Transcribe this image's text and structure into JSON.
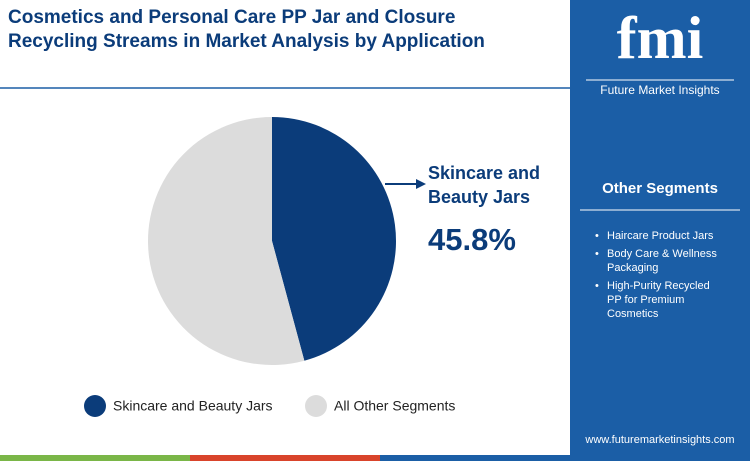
{
  "chart_data": {
    "type": "pie",
    "title": "Cosmetics and Personal Care PP Jar and Closure Recycling Streams in Market Analysis by Application",
    "categories": [
      "Skincare and Beauty Jars",
      "All Other Segments"
    ],
    "values": [
      45.8,
      54.2
    ],
    "value_labels": [
      "45.8%",
      null
    ],
    "colors": [
      "#0b3c7a",
      "#dcdcdc"
    ],
    "legend": "bottom"
  },
  "sidebar": {
    "logo": "fmi",
    "brand": "Future Market Insights",
    "heading": "Other Segments",
    "items": [
      "Haircare Product Jars",
      "Body Care & Wellness Packaging",
      "High-Purity Recycled PP for Premium Cosmetics"
    ],
    "url": "www.futuremarketinsights.com"
  }
}
